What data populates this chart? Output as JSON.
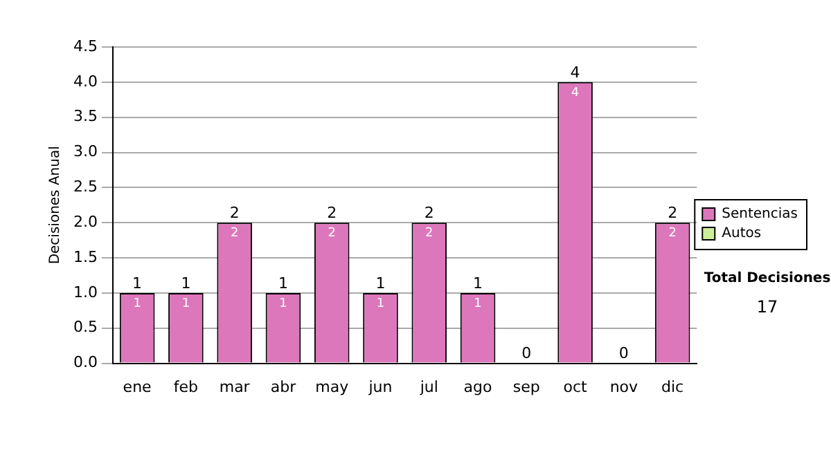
{
  "chart_data": {
    "type": "bar",
    "stacked": true,
    "ylabel": "Decisiones Anual",
    "categories": [
      "ene",
      "feb",
      "mar",
      "abr",
      "may",
      "jun",
      "jul",
      "ago",
      "sep",
      "oct",
      "nov",
      "dic"
    ],
    "series": [
      {
        "name": "Sentencias",
        "color": "#dd77bb",
        "values": [
          1,
          1,
          2,
          1,
          2,
          1,
          2,
          1,
          0,
          4,
          0,
          2
        ],
        "value_labels": [
          "1",
          "1",
          "2",
          "1",
          "2",
          "1",
          "2",
          "1",
          null,
          "4",
          null,
          "2"
        ]
      },
      {
        "name": "Autos",
        "color": "#ccee99",
        "values": [
          0,
          0,
          0,
          0,
          0,
          0,
          0,
          0,
          0,
          0,
          0,
          0
        ]
      }
    ],
    "totals": [
      "1",
      "1",
      "2",
      "1",
      "2",
      "1",
      "2",
      "1",
      "0",
      "4",
      "0",
      "2"
    ],
    "ylim": [
      0,
      4.5
    ],
    "yticks": [
      {
        "value": 0,
        "label": "0.0"
      },
      {
        "value": 0.5,
        "label": "0.5"
      },
      {
        "value": 1,
        "label": "1.0"
      },
      {
        "value": 1.5,
        "label": "1.5"
      },
      {
        "value": 2,
        "label": "2.0"
      },
      {
        "value": 2.5,
        "label": "2.5"
      },
      {
        "value": 3,
        "label": "3.0"
      },
      {
        "value": 3.5,
        "label": "3.5"
      },
      {
        "value": 4,
        "label": "4.0"
      },
      {
        "value": 4.5,
        "label": "4.5"
      }
    ],
    "grid": "y",
    "legend": "right",
    "annotations": [
      "Total Decisiones",
      "17"
    ]
  }
}
